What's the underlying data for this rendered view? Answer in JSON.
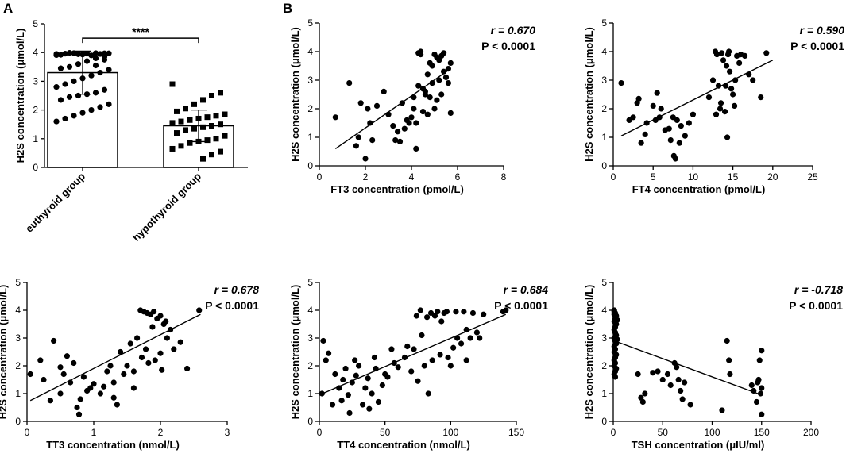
{
  "panels": {
    "a": "A",
    "b": "B"
  },
  "chart_data": [
    {
      "id": "bar",
      "type": "bar",
      "categories": [
        "euthyroid group",
        "hypothyroid group"
      ],
      "values": [
        3.3,
        1.45
      ],
      "sd": [
        0.75,
        0.55
      ],
      "ylabel": "H2S concentration (μmol/L)",
      "ylim": [
        0,
        5
      ],
      "yticks": [
        0,
        1,
        2,
        3,
        4,
        5
      ],
      "significance": "****",
      "points": [
        [
          3.95,
          3.97,
          3.98,
          3.96,
          3.94,
          3.99,
          3.92,
          3.97,
          3.95,
          3.9,
          3.93,
          3.98,
          3.96,
          3.91,
          3.85,
          3.8,
          3.7,
          3.6,
          3.5,
          3.45,
          3.4,
          3.3,
          3.2,
          3.1,
          3.0,
          2.9,
          2.8,
          2.7,
          2.6,
          2.55,
          2.5,
          2.45,
          2.35,
          2.2,
          2.1,
          2.0,
          1.9,
          1.8,
          1.7,
          1.6,
          3.75,
          3.55
        ],
        [
          2.9,
          2.6,
          2.5,
          2.35,
          2.2,
          2.05,
          1.95,
          1.85,
          1.8,
          1.75,
          1.7,
          1.65,
          1.6,
          1.55,
          1.5,
          1.45,
          1.4,
          1.35,
          1.3,
          1.2,
          1.1,
          1.0,
          0.95,
          0.9,
          0.85,
          0.75,
          0.65,
          0.55,
          0.45,
          0.3
        ]
      ]
    },
    {
      "id": "ft3",
      "type": "scatter",
      "xlabel": "FT3 concentration (pmol/L)",
      "ylabel": "H2S concentration (μmol/L)",
      "xlim": [
        0,
        8
      ],
      "xticks": [
        0,
        2,
        4,
        6,
        8
      ],
      "ylim": [
        0,
        5
      ],
      "yticks": [
        0,
        1,
        2,
        3,
        4,
        5
      ],
      "r": "r = 0.670",
      "p": "P < 0.0001",
      "fit": [
        [
          0.7,
          0.6
        ],
        [
          5.7,
          3.4
        ]
      ],
      "points": [
        [
          0.7,
          1.7
        ],
        [
          1.3,
          2.9
        ],
        [
          1.6,
          0.7
        ],
        [
          1.7,
          1.0
        ],
        [
          1.8,
          2.2
        ],
        [
          2.0,
          0.25
        ],
        [
          2.2,
          1.5
        ],
        [
          2.1,
          2.0
        ],
        [
          2.3,
          0.9
        ],
        [
          2.5,
          2.1
        ],
        [
          2.8,
          2.6
        ],
        [
          3.0,
          1.8
        ],
        [
          3.2,
          1.4
        ],
        [
          3.3,
          0.9
        ],
        [
          3.4,
          1.2
        ],
        [
          3.5,
          0.85
        ],
        [
          3.6,
          2.2
        ],
        [
          3.7,
          1.3
        ],
        [
          3.8,
          1.6
        ],
        [
          3.9,
          1.5
        ],
        [
          4.0,
          1.7
        ],
        [
          4.1,
          2.0
        ],
        [
          4.1,
          2.4
        ],
        [
          4.2,
          0.6
        ],
        [
          4.2,
          1.5
        ],
        [
          4.3,
          2.8
        ],
        [
          4.3,
          3.95
        ],
        [
          4.4,
          4.0
        ],
        [
          4.4,
          3.9
        ],
        [
          4.5,
          1.9
        ],
        [
          4.5,
          2.7
        ],
        [
          4.6,
          2.6
        ],
        [
          4.6,
          2.5
        ],
        [
          4.7,
          3.2
        ],
        [
          4.7,
          1.8
        ],
        [
          4.8,
          2.4
        ],
        [
          4.8,
          3.6
        ],
        [
          4.9,
          3.5
        ],
        [
          4.9,
          2.9
        ],
        [
          5.0,
          3.9
        ],
        [
          5.0,
          2.0
        ],
        [
          5.1,
          3.8
        ],
        [
          5.1,
          2.3
        ],
        [
          5.2,
          3.7
        ],
        [
          5.2,
          3.0
        ],
        [
          5.3,
          3.85
        ],
        [
          5.3,
          2.5
        ],
        [
          5.4,
          3.95
        ],
        [
          5.4,
          3.3
        ],
        [
          5.5,
          3.1
        ],
        [
          5.6,
          3.4
        ],
        [
          5.7,
          3.6
        ],
        [
          5.7,
          1.85
        ],
        [
          5.6,
          2.9
        ]
      ]
    },
    {
      "id": "ft4",
      "type": "scatter",
      "xlabel": "FT4 concentration (pmol/L)",
      "ylabel": "H2S concentration (μmol/L)",
      "xlim": [
        0,
        25
      ],
      "xticks": [
        0,
        5,
        10,
        15,
        20,
        25
      ],
      "ylim": [
        0,
        5
      ],
      "yticks": [
        0,
        1,
        2,
        3,
        4,
        5
      ],
      "r": "r = 0.590",
      "p": "P < 0.0001",
      "fit": [
        [
          1.0,
          1.05
        ],
        [
          20.0,
          3.7
        ]
      ],
      "points": [
        [
          1.0,
          2.9
        ],
        [
          2.0,
          1.6
        ],
        [
          2.5,
          1.7
        ],
        [
          3.0,
          2.2
        ],
        [
          3.2,
          2.35
        ],
        [
          3.5,
          0.8
        ],
        [
          4.0,
          1.1
        ],
        [
          4.2,
          1.5
        ],
        [
          5.0,
          2.1
        ],
        [
          5.3,
          1.6
        ],
        [
          5.5,
          2.55
        ],
        [
          5.8,
          1.7
        ],
        [
          6.0,
          2.0
        ],
        [
          6.5,
          1.25
        ],
        [
          7.0,
          1.3
        ],
        [
          7.2,
          0.9
        ],
        [
          7.5,
          1.7
        ],
        [
          7.6,
          0.35
        ],
        [
          7.8,
          0.25
        ],
        [
          8.0,
          1.6
        ],
        [
          8.3,
          0.8
        ],
        [
          8.5,
          1.4
        ],
        [
          9.0,
          1.05
        ],
        [
          9.5,
          1.5
        ],
        [
          10.0,
          1.8
        ],
        [
          12.0,
          2.4
        ],
        [
          12.5,
          3.0
        ],
        [
          12.8,
          4.0
        ],
        [
          13.0,
          3.9
        ],
        [
          13.2,
          2.8
        ],
        [
          13.5,
          2.2
        ],
        [
          13.6,
          3.95
        ],
        [
          13.8,
          3.7
        ],
        [
          14.0,
          1.9
        ],
        [
          14.1,
          2.8
        ],
        [
          14.2,
          3.5
        ],
        [
          14.3,
          1.0
        ],
        [
          14.4,
          3.9
        ],
        [
          14.5,
          4.0
        ],
        [
          14.6,
          3.3
        ],
        [
          15.0,
          2.5
        ],
        [
          15.2,
          2.1
        ],
        [
          15.3,
          3.0
        ],
        [
          15.5,
          3.85
        ],
        [
          15.8,
          3.6
        ],
        [
          16.0,
          3.9
        ],
        [
          16.5,
          3.85
        ],
        [
          17.0,
          3.2
        ],
        [
          17.5,
          3.0
        ],
        [
          18.5,
          2.4
        ],
        [
          19.2,
          3.95
        ],
        [
          12.9,
          1.8
        ],
        [
          13.4,
          2.0
        ],
        [
          14.8,
          2.7
        ]
      ]
    },
    {
      "id": "tt3",
      "type": "scatter",
      "xlabel": "TT3 concentration (nmol/L)",
      "ylabel": "H2S concentration (μmol/L)",
      "xlim": [
        0,
        3
      ],
      "xticks": [
        0,
        1,
        2,
        3
      ],
      "ylim": [
        0,
        5
      ],
      "yticks": [
        0,
        1,
        2,
        3,
        4,
        5
      ],
      "r": "r = 0.678",
      "p": "P < 0.0001",
      "fit": [
        [
          0.05,
          0.75
        ],
        [
          2.6,
          3.85
        ]
      ],
      "points": [
        [
          0.05,
          1.7
        ],
        [
          0.2,
          2.2
        ],
        [
          0.25,
          1.5
        ],
        [
          0.35,
          0.75
        ],
        [
          0.4,
          2.9
        ],
        [
          0.5,
          1.95
        ],
        [
          0.5,
          1.0
        ],
        [
          0.55,
          1.7
        ],
        [
          0.6,
          2.35
        ],
        [
          0.65,
          1.4
        ],
        [
          0.7,
          2.1
        ],
        [
          0.75,
          0.5
        ],
        [
          0.78,
          0.25
        ],
        [
          0.8,
          0.8
        ],
        [
          0.85,
          1.6
        ],
        [
          0.9,
          1.1
        ],
        [
          0.95,
          1.2
        ],
        [
          1.0,
          1.35
        ],
        [
          1.1,
          1.0
        ],
        [
          1.15,
          1.25
        ],
        [
          1.2,
          1.8
        ],
        [
          1.25,
          2.0
        ],
        [
          1.3,
          0.85
        ],
        [
          1.3,
          1.4
        ],
        [
          1.35,
          0.6
        ],
        [
          1.4,
          2.5
        ],
        [
          1.45,
          1.7
        ],
        [
          1.5,
          2.0
        ],
        [
          1.55,
          2.8
        ],
        [
          1.6,
          1.2
        ],
        [
          1.65,
          3.0
        ],
        [
          1.7,
          4.0
        ],
        [
          1.72,
          2.3
        ],
        [
          1.75,
          3.95
        ],
        [
          1.78,
          2.6
        ],
        [
          1.8,
          3.9
        ],
        [
          1.82,
          2.1
        ],
        [
          1.85,
          3.85
        ],
        [
          1.88,
          3.4
        ],
        [
          1.9,
          3.95
        ],
        [
          1.92,
          2.2
        ],
        [
          1.95,
          3.7
        ],
        [
          2.0,
          3.8
        ],
        [
          2.0,
          2.45
        ],
        [
          2.02,
          1.85
        ],
        [
          2.05,
          3.5
        ],
        [
          2.08,
          3.6
        ],
        [
          2.1,
          3.0
        ],
        [
          2.15,
          3.3
        ],
        [
          2.2,
          2.6
        ],
        [
          2.3,
          2.85
        ],
        [
          2.4,
          1.9
        ],
        [
          2.58,
          4.0
        ],
        [
          1.6,
          1.8
        ]
      ]
    },
    {
      "id": "tt4",
      "type": "scatter",
      "xlabel": "TT4 concentration (nmol/L)",
      "ylabel": "H2S concentration (μmol/L)",
      "xlim": [
        0,
        150
      ],
      "xticks": [
        0,
        50,
        100,
        150
      ],
      "ylim": [
        0,
        5
      ],
      "yticks": [
        0,
        1,
        2,
        3,
        4,
        5
      ],
      "r": "r = 0.684",
      "p": "P < 0.0001",
      "fit": [
        [
          0,
          0.95
        ],
        [
          142,
          3.85
        ]
      ],
      "points": [
        [
          2,
          1.0
        ],
        [
          3,
          2.9
        ],
        [
          5,
          2.2
        ],
        [
          7,
          2.45
        ],
        [
          10,
          0.6
        ],
        [
          12,
          1.7
        ],
        [
          15,
          1.2
        ],
        [
          17,
          0.75
        ],
        [
          18,
          1.5
        ],
        [
          20,
          1.9
        ],
        [
          22,
          0.95
        ],
        [
          23,
          0.3
        ],
        [
          25,
          1.4
        ],
        [
          27,
          2.2
        ],
        [
          28,
          1.65
        ],
        [
          30,
          2.0
        ],
        [
          33,
          0.6
        ],
        [
          35,
          1.2
        ],
        [
          37,
          1.55
        ],
        [
          38,
          0.45
        ],
        [
          40,
          1.0
        ],
        [
          42,
          2.3
        ],
        [
          43,
          1.9
        ],
        [
          45,
          0.7
        ],
        [
          48,
          1.3
        ],
        [
          50,
          1.7
        ],
        [
          52,
          1.6
        ],
        [
          55,
          2.6
        ],
        [
          57,
          2.1
        ],
        [
          60,
          1.95
        ],
        [
          65,
          2.3
        ],
        [
          67,
          2.7
        ],
        [
          70,
          1.8
        ],
        [
          72,
          2.6
        ],
        [
          74,
          3.8
        ],
        [
          75,
          1.45
        ],
        [
          77,
          4.0
        ],
        [
          78,
          3.1
        ],
        [
          80,
          2.0
        ],
        [
          82,
          3.75
        ],
        [
          83,
          1.0
        ],
        [
          85,
          3.9
        ],
        [
          86,
          2.2
        ],
        [
          88,
          3.8
        ],
        [
          90,
          3.95
        ],
        [
          92,
          2.4
        ],
        [
          93,
          3.6
        ],
        [
          95,
          3.9
        ],
        [
          97,
          3.95
        ],
        [
          98,
          2.3
        ],
        [
          100,
          2.0
        ],
        [
          102,
          2.65
        ],
        [
          104,
          3.95
        ],
        [
          105,
          3.0
        ],
        [
          108,
          2.8
        ],
        [
          110,
          3.95
        ],
        [
          112,
          2.2
        ],
        [
          115,
          3.0
        ],
        [
          117,
          3.9
        ],
        [
          120,
          3.2
        ],
        [
          122,
          3.0
        ],
        [
          125,
          3.85
        ],
        [
          140,
          3.95
        ],
        [
          142,
          4.0
        ],
        [
          112,
          3.3
        ]
      ]
    },
    {
      "id": "tsh",
      "type": "scatter",
      "xlabel": "TSH concentration (μIU/ml)",
      "ylabel": "H2S concentration (μmol/L)",
      "xlim": [
        0,
        200
      ],
      "xticks": [
        0,
        50,
        100,
        150,
        200
      ],
      "ylim": [
        0,
        5
      ],
      "yticks": [
        0,
        1,
        2,
        3,
        4,
        5
      ],
      "r": "r = -0.718",
      "p": "P < 0.0001",
      "fit": [
        [
          1,
          2.9
        ],
        [
          150,
          0.95
        ]
      ],
      "points": [
        [
          1,
          4.0
        ],
        [
          1,
          3.95
        ],
        [
          2,
          3.9
        ],
        [
          1,
          3.85
        ],
        [
          3,
          3.8
        ],
        [
          2,
          3.7
        ],
        [
          1,
          3.6
        ],
        [
          3,
          3.5
        ],
        [
          2,
          3.4
        ],
        [
          1,
          3.3
        ],
        [
          2,
          3.2
        ],
        [
          3,
          3.1
        ],
        [
          1,
          3.0
        ],
        [
          2,
          2.9
        ],
        [
          3,
          2.8
        ],
        [
          1,
          2.7
        ],
        [
          2,
          2.6
        ],
        [
          1,
          2.5
        ],
        [
          3,
          2.4
        ],
        [
          2,
          2.3
        ],
        [
          1,
          2.2
        ],
        [
          2,
          2.1
        ],
        [
          1,
          2.0
        ],
        [
          3,
          1.9
        ],
        [
          2,
          1.8
        ],
        [
          1,
          1.7
        ],
        [
          2,
          1.6
        ],
        [
          4,
          3.65
        ],
        [
          4,
          2.95
        ],
        [
          25,
          1.7
        ],
        [
          28,
          0.85
        ],
        [
          30,
          0.7
        ],
        [
          32,
          1.0
        ],
        [
          40,
          1.75
        ],
        [
          45,
          1.8
        ],
        [
          50,
          1.5
        ],
        [
          55,
          1.7
        ],
        [
          58,
          1.3
        ],
        [
          62,
          2.1
        ],
        [
          64,
          1.95
        ],
        [
          66,
          1.5
        ],
        [
          68,
          1.1
        ],
        [
          70,
          0.8
        ],
        [
          72,
          1.4
        ],
        [
          78,
          0.6
        ],
        [
          110,
          0.4
        ],
        [
          115,
          2.9
        ],
        [
          117,
          2.2
        ],
        [
          118,
          1.7
        ],
        [
          140,
          1.3
        ],
        [
          142,
          1.1
        ],
        [
          145,
          0.7
        ],
        [
          147,
          1.5
        ],
        [
          148,
          2.2
        ],
        [
          150,
          2.55
        ],
        [
          150,
          1.2
        ],
        [
          150,
          0.25
        ],
        [
          149,
          1.0
        ],
        [
          146,
          1.4
        ]
      ]
    }
  ]
}
